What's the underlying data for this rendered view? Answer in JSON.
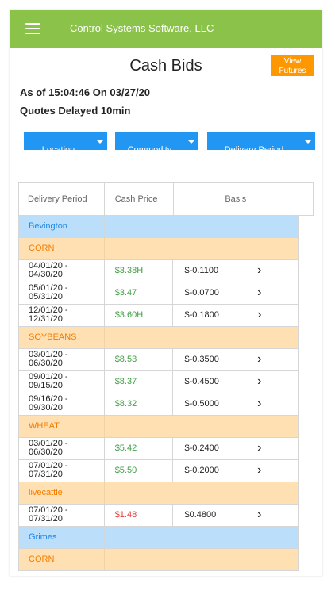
{
  "header": {
    "app_title": "Control Systems Software, LLC",
    "menu_icon": "hamburger-menu-icon"
  },
  "page": {
    "title": "Cash Bids",
    "view_futures_line1": "View",
    "view_futures_line2": "Futures",
    "as_of": "As of 15:04:46 On 03/27/20",
    "delayed": "Quotes Delayed 10min"
  },
  "filters": {
    "location": "Location",
    "commodity": "Commodity",
    "delivery_period": "Delivery Period"
  },
  "table": {
    "headers": [
      "Delivery Period",
      "Cash Price",
      "Basis"
    ],
    "rows": [
      {
        "kind": "location",
        "label": "Bevington"
      },
      {
        "kind": "commodity",
        "label": "CORN"
      },
      {
        "kind": "data",
        "period1": "04/01/20 -",
        "period2": "04/30/20",
        "price": "$3.38H",
        "price_color": "green",
        "basis": "$-0.1100"
      },
      {
        "kind": "data",
        "period1": "05/01/20 -",
        "period2": "05/31/20",
        "price": "$3.47",
        "price_color": "green",
        "basis": "$-0.0700"
      },
      {
        "kind": "data",
        "period1": "12/01/20 -",
        "period2": "12/31/20",
        "price": "$3.60H",
        "price_color": "green",
        "basis": "$-0.1800"
      },
      {
        "kind": "commodity",
        "label": "SOYBEANS"
      },
      {
        "kind": "data",
        "period1": "03/01/20 -",
        "period2": "06/30/20",
        "price": "$8.53",
        "price_color": "green",
        "basis": "$-0.3500"
      },
      {
        "kind": "data",
        "period1": "09/01/20 -",
        "period2": "09/15/20",
        "price": "$8.37",
        "price_color": "green",
        "basis": "$-0.4500"
      },
      {
        "kind": "data",
        "period1": "09/16/20 -",
        "period2": "09/30/20",
        "price": "$8.32",
        "price_color": "green",
        "basis": "$-0.5000"
      },
      {
        "kind": "commodity",
        "label": "WHEAT"
      },
      {
        "kind": "data",
        "period1": "03/01/20 -",
        "period2": "06/30/20",
        "price": "$5.42",
        "price_color": "green",
        "basis": "$-0.2400"
      },
      {
        "kind": "data",
        "period1": "07/01/20 -",
        "period2": "07/31/20",
        "price": "$5.50",
        "price_color": "green",
        "basis": "$-0.2000"
      },
      {
        "kind": "commodity",
        "label": "livecattle"
      },
      {
        "kind": "data",
        "period1": "07/01/20 -",
        "period2": "07/31/20",
        "price": "$1.48",
        "price_color": "red",
        "basis": "$0.4800"
      },
      {
        "kind": "location",
        "label": "Grimes"
      },
      {
        "kind": "commodity",
        "label": "CORN"
      }
    ]
  },
  "colors": {
    "topbar": "#8bc34a",
    "accent_orange": "#ff9800",
    "filter_blue": "#2196f3",
    "location_row": "#bbdefb",
    "commodity_row": "#ffe0b2",
    "price_green": "#43a047",
    "price_red": "#e53935"
  }
}
